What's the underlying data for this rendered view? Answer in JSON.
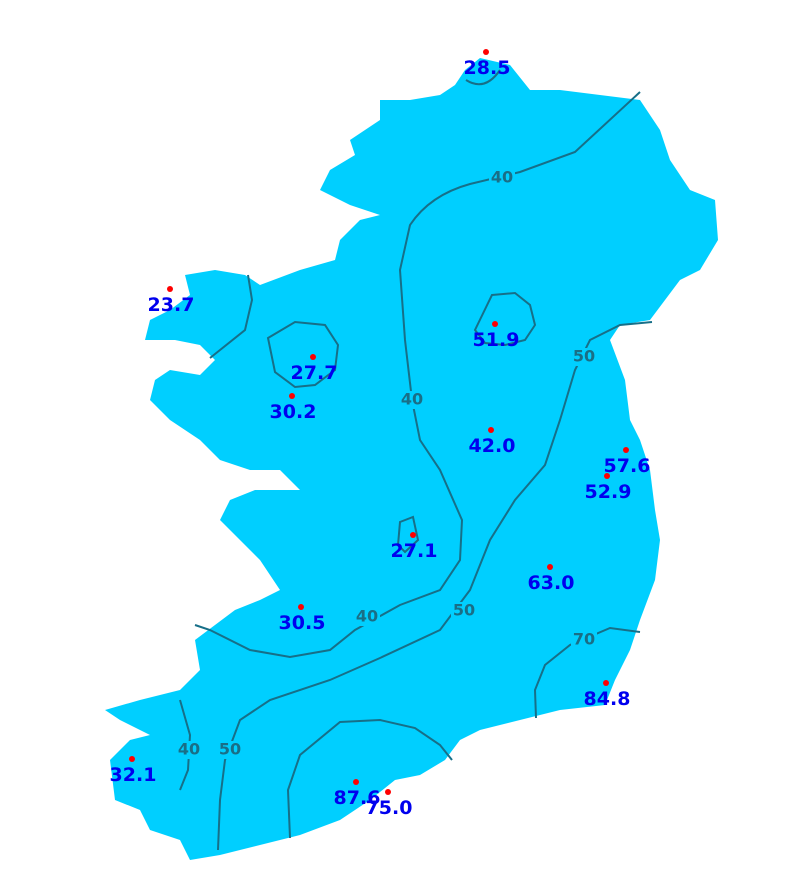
{
  "colors": {
    "land": "#00cfff",
    "contour": "#176f88",
    "station_dot": "#ff0000",
    "station_label": "#0000ee"
  },
  "stations": [
    {
      "value": "28.5"
    },
    {
      "value": "23.7"
    },
    {
      "value": "27.7"
    },
    {
      "value": "30.2"
    },
    {
      "value": "51.9"
    },
    {
      "value": "42.0"
    },
    {
      "value": "57.6"
    },
    {
      "value": "52.9"
    },
    {
      "value": "27.1"
    },
    {
      "value": "63.0"
    },
    {
      "value": "30.5"
    },
    {
      "value": "84.8"
    },
    {
      "value": "32.1"
    },
    {
      "value": "87.6"
    },
    {
      "value": "75.0"
    }
  ],
  "contour_labels": [
    "40",
    "40",
    "50",
    "40",
    "50",
    "70",
    "40",
    "50"
  ]
}
